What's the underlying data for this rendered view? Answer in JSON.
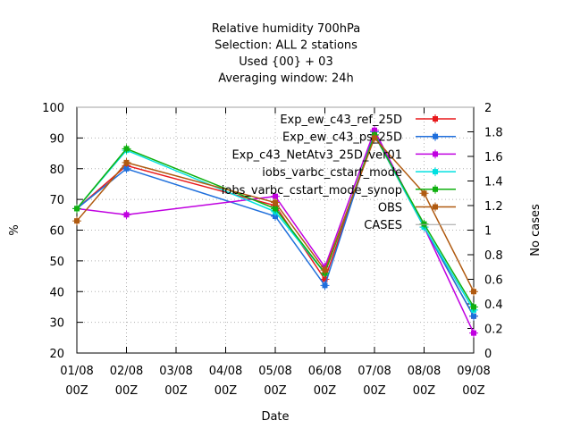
{
  "chart_data": {
    "type": "line",
    "title_lines": [
      "Relative humidity 700hPa",
      "Selection: ALL      2 stations",
      "Used {00} + 03",
      "Averaging window: 24h"
    ],
    "xlabel": "Date",
    "ylabel": "%",
    "y2label": "No cases",
    "categories": [
      "01/08",
      "02/08",
      "03/08",
      "04/08",
      "05/08",
      "06/08",
      "07/08",
      "08/08",
      "09/08"
    ],
    "category_sublabel": "00Z",
    "ylim": [
      20,
      100
    ],
    "yticks": [
      "20",
      "30",
      "40",
      "50",
      "60",
      "70",
      "80",
      "90",
      "100"
    ],
    "y2lim": [
      0,
      2
    ],
    "y2ticks": [
      "0",
      "0.2",
      "0.4",
      "0.6",
      "0.8",
      "1",
      "1.2",
      "1.4",
      "1.6",
      "1.8",
      "2"
    ],
    "grid": true,
    "legend_position": "top-right",
    "series": [
      {
        "name": "Exp_ew_c43_ref_25D",
        "color": "#e8191c",
        "x": [
          0,
          1,
          4,
          5,
          6,
          7,
          8
        ],
        "values": [
          67,
          81,
          68,
          44,
          91,
          61,
          32
        ]
      },
      {
        "name": "Exp_ew_c43_ps_25D",
        "color": "#1f6fdc",
        "x": [
          0,
          1,
          4,
          5,
          6,
          7,
          8
        ],
        "values": [
          67,
          80,
          64.5,
          42,
          92,
          61,
          32
        ]
      },
      {
        "name": "Exp_c43_NetAtv3_25D_ver01",
        "color": "#c000e0",
        "x": [
          0,
          1,
          4,
          5,
          6,
          7,
          8
        ],
        "values": [
          67,
          65,
          71,
          48,
          92.5,
          61,
          26.5
        ]
      },
      {
        "name": "iobs_varbc_cstart_mode",
        "color": "#00e0e0",
        "x": [
          0,
          1,
          4,
          5,
          6,
          7,
          8
        ],
        "values": [
          67,
          86,
          66,
          46,
          91,
          61,
          34
        ]
      },
      {
        "name": "iobs_varbc_cstart_mode_synop",
        "color": "#10b010",
        "x": [
          0,
          1,
          4,
          5,
          6,
          7,
          8
        ],
        "values": [
          67,
          86.5,
          67,
          46,
          91,
          62,
          35
        ]
      },
      {
        "name": "OBS",
        "color": "#b05a10",
        "x": [
          0,
          1,
          4,
          5,
          6,
          7,
          8
        ],
        "values": [
          63,
          82,
          69,
          47,
          90,
          72,
          40
        ]
      }
    ],
    "cases": {
      "name": "CASES",
      "color": "#a0a0a0",
      "x": [
        0,
        1,
        4,
        5,
        6,
        7,
        8
      ],
      "values": [
        2,
        2,
        2,
        2,
        2,
        2,
        2
      ]
    }
  }
}
